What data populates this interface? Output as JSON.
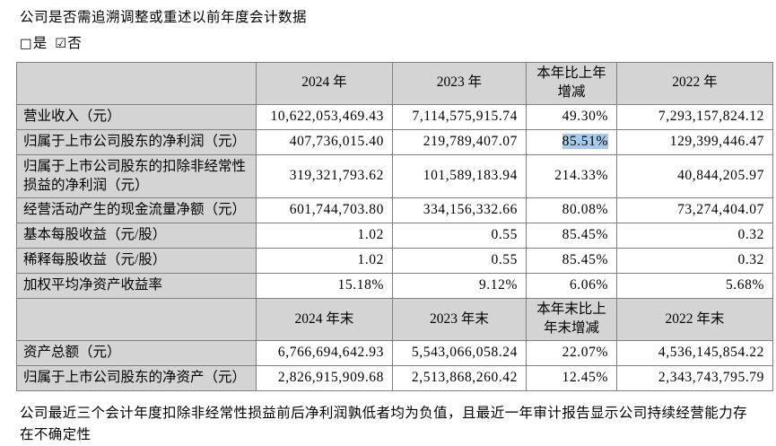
{
  "meta": {
    "question": "公司是否需追溯调整或重述以前年度会计数据",
    "checkbox_yes_glyph": "□",
    "checkbox_yes_label": "是",
    "checkbox_no_glyph": "☑",
    "checkbox_no_label": "否"
  },
  "table": {
    "header_annual": {
      "blank": "",
      "col_2024": "2024 年",
      "col_2023": "2023 年",
      "col_change": "本年比上年\n增减",
      "col_2022": "2022 年"
    },
    "rows_annual": [
      {
        "label": "营业收入（元）",
        "values": [
          "10,622,053,469.43",
          "7,114,575,915.74",
          "49.30%",
          "7,293,157,824.12"
        ]
      },
      {
        "label": "归属于上市公司股东的净利润（元）",
        "values": [
          "407,736,015.40",
          "219,789,407.07",
          "85.51%",
          "129,399,446.47"
        ],
        "highlight_change": true
      },
      {
        "label": "归属于上市公司股东的扣除非经常性损益的净利润（元）",
        "values": [
          "319,321,793.62",
          "101,589,183.94",
          "214.33%",
          "40,844,205.97"
        ]
      },
      {
        "label": "经营活动产生的现金流量净额（元）",
        "values": [
          "601,744,703.80",
          "334,156,332.66",
          "80.08%",
          "73,274,404.07"
        ]
      },
      {
        "label": "基本每股收益（元/股）",
        "values": [
          "1.02",
          "0.55",
          "85.45%",
          "0.32"
        ]
      },
      {
        "label": "稀释每股收益（元/股）",
        "values": [
          "1.02",
          "0.55",
          "85.45%",
          "0.32"
        ]
      },
      {
        "label": "加权平均净资产收益率",
        "values": [
          "15.18%",
          "9.12%",
          "6.06%",
          "5.68%"
        ]
      }
    ],
    "header_yearend": {
      "blank": "",
      "col_2024": "2024 年末",
      "col_2023": "2023 年末",
      "col_change": "本年末比上\n年末增减",
      "col_2022": "2022 年末"
    },
    "rows_yearend": [
      {
        "label": "资产总额（元）",
        "values": [
          "6,766,694,642.93",
          "5,543,066,058.24",
          "22.07%",
          "4,536,145,854.22"
        ]
      },
      {
        "label": "归属于上市公司股东的净资产（元）",
        "values": [
          "2,826,915,909.68",
          "2,513,868,260.42",
          "12.45%",
          "2,343,743,795.79"
        ]
      }
    ]
  },
  "footnote": "公司最近三个会计年度扣除非经常性损益前后净利润孰低者均为负值，且最近一年审计报告显示公司持续经营能力存在不确定性",
  "colors": {
    "header_bg": "#d4d4d4",
    "border": "#808080",
    "selection_highlight": "#a6c9ec"
  }
}
